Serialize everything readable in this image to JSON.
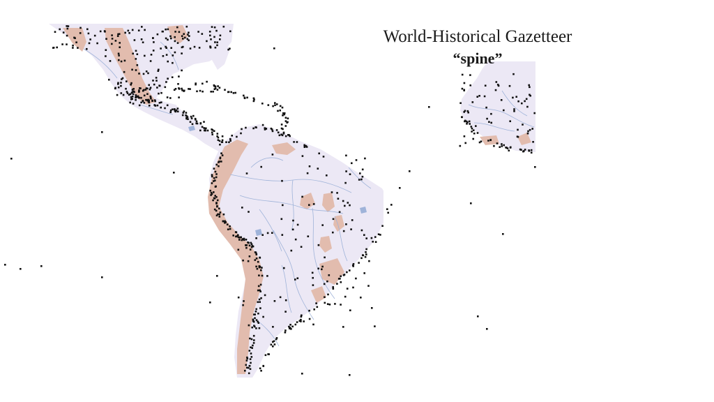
{
  "slide": {
    "title": "World-Historical Gazetteer",
    "subtitle": "“spine”"
  },
  "map": {
    "colors": {
      "background": "#ffffff",
      "land": "#ece8f5",
      "mountains": "#e2bcae",
      "rivers": "#9fb3d9",
      "places": "#111111"
    },
    "marker_icon": "place-dot-icon"
  }
}
